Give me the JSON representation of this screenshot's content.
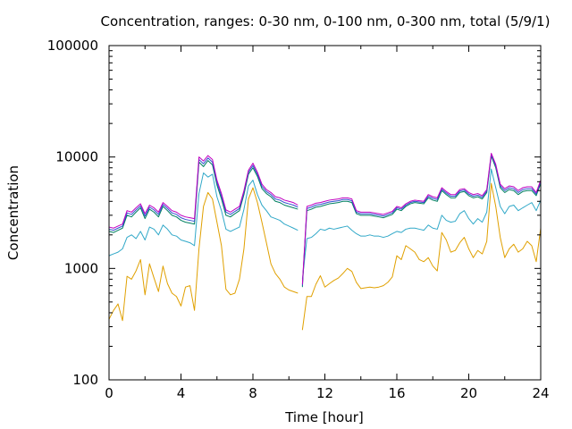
{
  "chart_data": {
    "type": "line",
    "title": "Concentration, ranges: 0-30 nm, 0-100 nm, 0-300 nm, total (5/9/1)",
    "xlabel": "Time [hour]",
    "ylabel": "Concentration",
    "xlim": [
      0,
      24
    ],
    "ylim": [
      100,
      100000
    ],
    "y_scale": "log",
    "grid": false,
    "legend": "none",
    "x_ticks": [
      0,
      4,
      8,
      12,
      16,
      20,
      24
    ],
    "x_tick_labels": [
      "0",
      "4",
      "8",
      "12",
      "16",
      "20",
      "24"
    ],
    "x_minor_ticks": [
      2,
      6,
      10,
      14,
      18,
      22
    ],
    "y_ticks": [
      100,
      1000,
      10000,
      100000
    ],
    "y_tick_labels": [
      "100",
      "1000",
      "10000",
      "100000"
    ],
    "series": [
      {
        "color": "#e0a000",
        "x": [
          0,
          0.25,
          0.5,
          0.75,
          1,
          1.25,
          1.5,
          1.75,
          2,
          2.25,
          2.5,
          2.75,
          3,
          3.25,
          3.5,
          3.75,
          4,
          4.25,
          4.5,
          4.75,
          5,
          5.25,
          5.5,
          5.75,
          6,
          6.25,
          6.5,
          6.75,
          7,
          7.25,
          7.5,
          7.75,
          8,
          8.25,
          8.5,
          8.75,
          9,
          9.25,
          9.5,
          9.75,
          10,
          10.25,
          10.5,
          10.65,
          10.75,
          11,
          11.25,
          11.5,
          11.75,
          12,
          12.25,
          12.5,
          12.75,
          13,
          13.25,
          13.5,
          13.75,
          14,
          14.25,
          14.5,
          14.75,
          15,
          15.25,
          15.5,
          15.75,
          16,
          16.25,
          16.5,
          16.75,
          17,
          17.25,
          17.5,
          17.75,
          18,
          18.25,
          18.5,
          18.75,
          19,
          19.25,
          19.5,
          19.75,
          20,
          20.25,
          20.5,
          20.75,
          21,
          21.25,
          21.5,
          21.75,
          22,
          22.25,
          22.5,
          22.75,
          23,
          23.25,
          23.5,
          23.75,
          24
        ],
        "y": [
          350,
          420,
          480,
          340,
          850,
          800,
          950,
          1200,
          580,
          1100,
          820,
          620,
          1050,
          730,
          600,
          560,
          460,
          680,
          700,
          420,
          1500,
          3600,
          4800,
          4200,
          2600,
          1600,
          650,
          580,
          600,
          800,
          1500,
          4200,
          5300,
          3900,
          2600,
          1700,
          1100,
          900,
          800,
          680,
          640,
          620,
          600,
          null,
          280,
          560,
          560,
          720,
          860,
          680,
          730,
          780,
          820,
          900,
          1000,
          940,
          750,
          660,
          670,
          680,
          670,
          680,
          700,
          750,
          840,
          1300,
          1200,
          1600,
          1500,
          1400,
          1200,
          1150,
          1250,
          1050,
          950,
          2100,
          1800,
          1400,
          1450,
          1700,
          1900,
          1500,
          1250,
          1450,
          1350,
          1750,
          5800,
          3600,
          1900,
          1250,
          1500,
          1650,
          1400,
          1500,
          1750,
          1600,
          1150,
          2300
        ]
      },
      {
        "color": "#30a8c8",
        "x": [
          0,
          0.25,
          0.5,
          0.75,
          1,
          1.25,
          1.5,
          1.75,
          2,
          2.25,
          2.5,
          2.75,
          3,
          3.25,
          3.5,
          3.75,
          4,
          4.25,
          4.5,
          4.75,
          5,
          5.25,
          5.5,
          5.75,
          6,
          6.25,
          6.5,
          6.75,
          7,
          7.25,
          7.5,
          7.75,
          8,
          8.25,
          8.5,
          8.75,
          9,
          9.25,
          9.5,
          9.75,
          10,
          10.25,
          10.5,
          10.65,
          10.75,
          11,
          11.25,
          11.5,
          11.75,
          12,
          12.25,
          12.5,
          12.75,
          13,
          13.25,
          13.5,
          13.75,
          14,
          14.25,
          14.5,
          14.75,
          15,
          15.25,
          15.5,
          15.75,
          16,
          16.25,
          16.5,
          16.75,
          17,
          17.25,
          17.5,
          17.75,
          18,
          18.25,
          18.5,
          18.75,
          19,
          19.25,
          19.5,
          19.75,
          20,
          20.25,
          20.5,
          20.75,
          21,
          21.25,
          21.5,
          21.75,
          22,
          22.25,
          22.5,
          22.75,
          23,
          23.25,
          23.5,
          23.75,
          24
        ],
        "y": [
          1300,
          1350,
          1400,
          1500,
          1900,
          2000,
          1850,
          2150,
          1800,
          2350,
          2250,
          2000,
          2450,
          2250,
          2000,
          1950,
          1800,
          1750,
          1700,
          1600,
          4700,
          7200,
          6600,
          7000,
          4400,
          3300,
          2250,
          2150,
          2250,
          2350,
          3400,
          5500,
          6200,
          4600,
          3700,
          3300,
          2900,
          2800,
          2700,
          2500,
          2400,
          2300,
          2200,
          null,
          800,
          1850,
          1900,
          2050,
          2250,
          2200,
          2300,
          2250,
          2300,
          2350,
          2400,
          2200,
          2050,
          1950,
          1950,
          2000,
          1950,
          1950,
          1900,
          1950,
          2050,
          2150,
          2100,
          2250,
          2300,
          2300,
          2250,
          2200,
          2450,
          2300,
          2250,
          3000,
          2700,
          2600,
          2650,
          3100,
          3300,
          2800,
          2500,
          2800,
          2600,
          3200,
          7800,
          5300,
          3600,
          3100,
          3600,
          3700,
          3300,
          3500,
          3700,
          3900,
          3300,
          4100
        ]
      },
      {
        "color": "#008060",
        "x": [
          0,
          0.25,
          0.5,
          0.75,
          1,
          1.25,
          1.5,
          1.75,
          2,
          2.25,
          2.5,
          2.75,
          3,
          3.25,
          3.5,
          3.75,
          4,
          4.25,
          4.5,
          4.75,
          5,
          5.25,
          5.5,
          5.75,
          6,
          6.25,
          6.5,
          6.75,
          7,
          7.25,
          7.5,
          7.75,
          8,
          8.25,
          8.5,
          8.75,
          9,
          9.25,
          9.5,
          9.75,
          10,
          10.25,
          10.5,
          10.65,
          10.75,
          11,
          11.25,
          11.5,
          11.75,
          12,
          12.25,
          12.5,
          12.75,
          13,
          13.25,
          13.5,
          13.75,
          14,
          14.25,
          14.5,
          14.75,
          15,
          15.25,
          15.5,
          15.75,
          16,
          16.25,
          16.5,
          16.75,
          17,
          17.25,
          17.5,
          17.75,
          18,
          18.25,
          18.5,
          18.75,
          19,
          19.25,
          19.5,
          19.75,
          20,
          20.25,
          20.5,
          20.75,
          21,
          21.25,
          21.5,
          21.75,
          22,
          22.25,
          22.5,
          22.75,
          23,
          23.25,
          23.5,
          23.75,
          24
        ],
        "y": [
          2150,
          2100,
          2200,
          2300,
          3000,
          2900,
          3200,
          3500,
          2800,
          3400,
          3200,
          2900,
          3600,
          3300,
          3000,
          2900,
          2700,
          2600,
          2550,
          2500,
          9000,
          8200,
          9300,
          8500,
          5600,
          4200,
          3000,
          2900,
          3100,
          3300,
          4600,
          7000,
          8000,
          6700,
          5200,
          4700,
          4400,
          4000,
          3900,
          3700,
          3600,
          3500,
          3400,
          null,
          680,
          3300,
          3400,
          3550,
          3600,
          3700,
          3800,
          3850,
          3900,
          4000,
          4000,
          3900,
          3100,
          3000,
          3000,
          3000,
          2950,
          2900,
          2850,
          2950,
          3050,
          3400,
          3300,
          3600,
          3800,
          3900,
          3850,
          3800,
          4300,
          4100,
          4000,
          5000,
          4600,
          4300,
          4300,
          4800,
          4900,
          4500,
          4300,
          4400,
          4200,
          4800,
          10200,
          8000,
          5300,
          4800,
          5100,
          5000,
          4600,
          4900,
          5000,
          5000,
          4500,
          5800
        ]
      },
      {
        "color": "#3050d0",
        "x": [
          0,
          0.25,
          0.5,
          0.75,
          1,
          1.25,
          1.5,
          1.75,
          2,
          2.25,
          2.5,
          2.75,
          3,
          3.25,
          3.5,
          3.75,
          4,
          4.25,
          4.5,
          4.75,
          5,
          5.25,
          5.5,
          5.75,
          6,
          6.25,
          6.5,
          6.75,
          7,
          7.25,
          7.5,
          7.75,
          8,
          8.25,
          8.5,
          8.75,
          9,
          9.25,
          9.5,
          9.75,
          10,
          10.25,
          10.5,
          10.65,
          10.75,
          11,
          11.25,
          11.5,
          11.75,
          12,
          12.25,
          12.5,
          12.75,
          13,
          13.25,
          13.5,
          13.75,
          14,
          14.25,
          14.5,
          14.75,
          15,
          15.25,
          15.5,
          15.75,
          16,
          16.25,
          16.5,
          16.75,
          17,
          17.25,
          17.5,
          17.75,
          18,
          18.25,
          18.5,
          18.75,
          19,
          19.25,
          19.5,
          19.75,
          20,
          20.25,
          20.5,
          20.75,
          21,
          21.25,
          21.5,
          21.75,
          22,
          22.25,
          22.5,
          22.75,
          23,
          23.25,
          23.5,
          23.75,
          24
        ],
        "y": [
          2250,
          2200,
          2300,
          2400,
          3150,
          3050,
          3350,
          3650,
          2950,
          3550,
          3350,
          3050,
          3750,
          3450,
          3150,
          3050,
          2850,
          2750,
          2700,
          2650,
          9500,
          8700,
          9800,
          9000,
          5900,
          4450,
          3200,
          3050,
          3250,
          3450,
          4800,
          7300,
          8400,
          7000,
          5450,
          4900,
          4600,
          4200,
          4100,
          3900,
          3800,
          3700,
          3550,
          null,
          700,
          3450,
          3550,
          3700,
          3750,
          3850,
          3950,
          4000,
          4050,
          4150,
          4150,
          4050,
          3200,
          3100,
          3100,
          3100,
          3050,
          3000,
          2950,
          3050,
          3150,
          3500,
          3400,
          3700,
          3900,
          4000,
          3950,
          3900,
          4450,
          4250,
          4150,
          5150,
          4750,
          4450,
          4450,
          4950,
          5050,
          4650,
          4450,
          4550,
          4350,
          4950,
          10500,
          8300,
          5500,
          5000,
          5300,
          5200,
          4800,
          5100,
          5200,
          5200,
          4650,
          6000
        ]
      },
      {
        "color": "#c000c0",
        "x": [
          0,
          0.25,
          0.5,
          0.75,
          1,
          1.25,
          1.5,
          1.75,
          2,
          2.25,
          2.5,
          2.75,
          3,
          3.25,
          3.5,
          3.75,
          4,
          4.25,
          4.5,
          4.75,
          5,
          5.25,
          5.5,
          5.75,
          6,
          6.25,
          6.5,
          6.75,
          7,
          7.25,
          7.5,
          7.75,
          8,
          8.25,
          8.5,
          8.75,
          9,
          9.25,
          9.5,
          9.75,
          10,
          10.25,
          10.5,
          10.65,
          10.75,
          11,
          11.25,
          11.5,
          11.75,
          12,
          12.25,
          12.5,
          12.75,
          13,
          13.25,
          13.5,
          13.75,
          14,
          14.25,
          14.5,
          14.75,
          15,
          15.25,
          15.5,
          15.75,
          16,
          16.25,
          16.5,
          16.75,
          17,
          17.25,
          17.5,
          17.75,
          18,
          18.25,
          18.5,
          18.75,
          19,
          19.25,
          19.5,
          19.75,
          20,
          20.25,
          20.5,
          20.75,
          21,
          21.25,
          21.5,
          21.75,
          22,
          22.25,
          22.5,
          22.75,
          23,
          23.25,
          23.5,
          23.75,
          24
        ],
        "y": [
          2350,
          2300,
          2400,
          2500,
          3300,
          3200,
          3500,
          3800,
          3100,
          3700,
          3500,
          3200,
          3900,
          3600,
          3300,
          3200,
          3000,
          2900,
          2850,
          2800,
          10000,
          9200,
          10300,
          9500,
          6200,
          4700,
          3350,
          3200,
          3400,
          3600,
          5000,
          7600,
          8800,
          7300,
          5700,
          5100,
          4800,
          4400,
          4300,
          4100,
          4000,
          3900,
          3700,
          null,
          720,
          3600,
          3700,
          3850,
          3900,
          4000,
          4100,
          4150,
          4200,
          4300,
          4300,
          4200,
          3300,
          3200,
          3200,
          3200,
          3150,
          3100,
          3050,
          3150,
          3250,
          3600,
          3500,
          3800,
          4000,
          4100,
          4050,
          4000,
          4600,
          4400,
          4300,
          5300,
          4900,
          4600,
          4600,
          5100,
          5200,
          4800,
          4600,
          4700,
          4500,
          5100,
          10800,
          8600,
          5700,
          5200,
          5500,
          5400,
          5000,
          5300,
          5400,
          5400,
          4800,
          6200
        ]
      }
    ]
  }
}
